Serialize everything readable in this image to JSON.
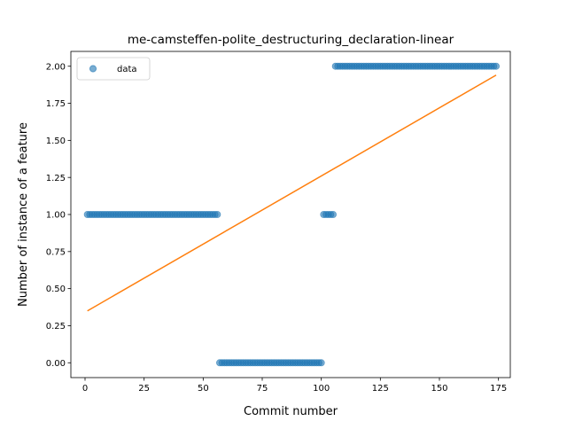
{
  "chart_data": {
    "type": "scatter",
    "title": "me-camsteffen-polite_destructuring_declaration-linear",
    "xlabel": "Commit number",
    "ylabel": "Number of instance of a feature",
    "xlim": [
      -6,
      180
    ],
    "ylim": [
      -0.1,
      2.1
    ],
    "xticks": [
      0,
      25,
      50,
      75,
      100,
      125,
      150,
      175
    ],
    "xtick_labels": [
      "0",
      "25",
      "50",
      "75",
      "100",
      "125",
      "150",
      "175"
    ],
    "yticks": [
      0.0,
      0.25,
      0.5,
      0.75,
      1.0,
      1.25,
      1.5,
      1.75,
      2.0
    ],
    "ytick_labels": [
      "0.00",
      "0.25",
      "0.50",
      "0.75",
      "1.00",
      "1.25",
      "1.50",
      "1.75",
      "2.00"
    ],
    "legend": {
      "placement": "top-left",
      "entries": [
        "data"
      ]
    },
    "grid": false,
    "series": [
      {
        "name": "data",
        "kind": "scatter",
        "color": "#1f77b4",
        "segments": [
          {
            "x_start": 1,
            "x_end": 56,
            "y": 1
          },
          {
            "x_start": 57,
            "x_end": 100,
            "y": 0
          },
          {
            "x_start": 101,
            "x_end": 105,
            "y": 1
          },
          {
            "x_start": 106,
            "x_end": 174,
            "y": 2
          }
        ]
      },
      {
        "kind": "line",
        "color": "#ff7f0e",
        "x": [
          1,
          174
        ],
        "y": [
          0.35,
          1.94
        ]
      }
    ]
  }
}
